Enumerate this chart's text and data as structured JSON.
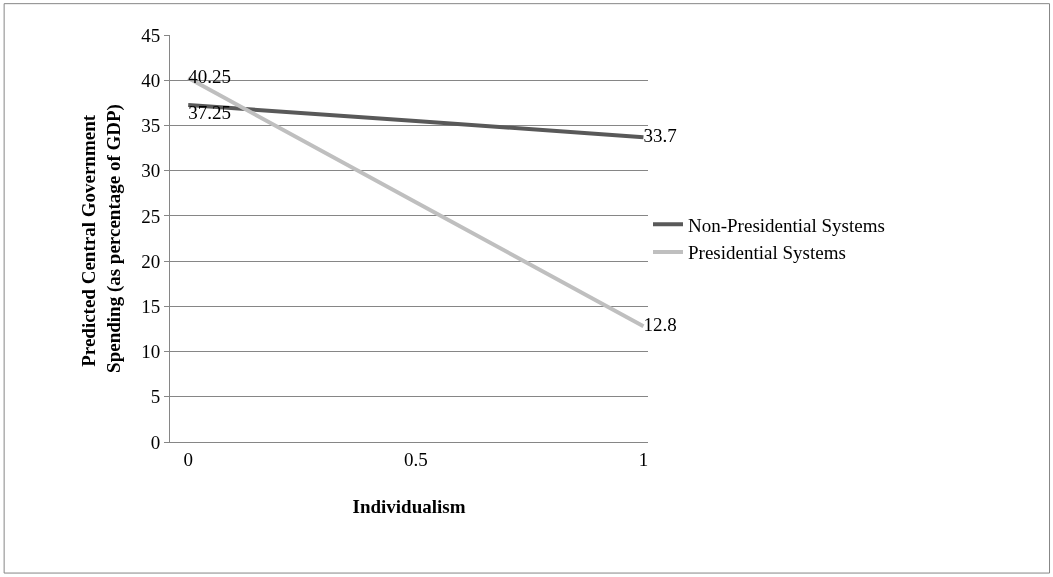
{
  "chart_data": {
    "type": "line",
    "xlabel": "Individualism",
    "ylabel": "Predicted Central Government Spending (as percentage of GDP)",
    "categories": [
      "0",
      "0.5",
      "1"
    ],
    "series": [
      {
        "name": "Non-Presidential Systems",
        "color": "#595959",
        "values": [
          37.25,
          35.5,
          33.7
        ],
        "value_labels": [
          "37.25",
          null,
          "33.7"
        ]
      },
      {
        "name": "Presidential Systems",
        "color": "#bfbfbf",
        "values": [
          40.25,
          26.5,
          12.8
        ],
        "value_labels": [
          "40.25",
          null,
          "12.8"
        ]
      }
    ],
    "ylim": [
      0,
      45
    ],
    "yticks": [
      0,
      5,
      10,
      15,
      20,
      25,
      30,
      35,
      40,
      45
    ],
    "grid": "y",
    "legend": "right",
    "marker": "none",
    "line_style": "solid"
  }
}
